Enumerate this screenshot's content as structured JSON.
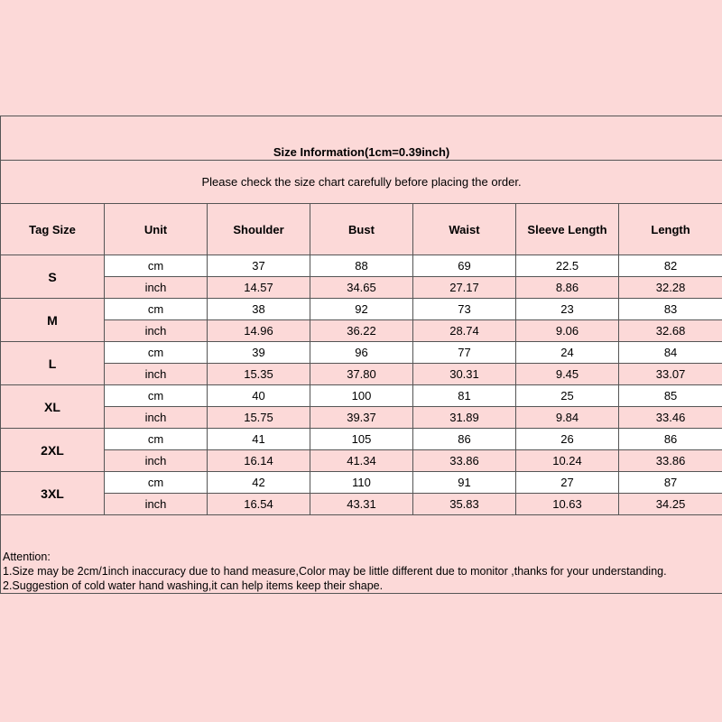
{
  "title": "Size Information(1cm=0.39inch)",
  "subtitle": "Please check the size chart carefully before placing the order.",
  "headers": [
    "Tag Size",
    "Unit",
    "Shoulder",
    "Bust",
    "Waist",
    "Sleeve Length",
    "Length"
  ],
  "sizes": [
    {
      "tag": "S",
      "cm": [
        "cm",
        "37",
        "88",
        "69",
        "22.5",
        "82"
      ],
      "inch": [
        "inch",
        "14.57",
        "34.65",
        "27.17",
        "8.86",
        "32.28"
      ]
    },
    {
      "tag": "M",
      "cm": [
        "cm",
        "38",
        "92",
        "73",
        "23",
        "83"
      ],
      "inch": [
        "inch",
        "14.96",
        "36.22",
        "28.74",
        "9.06",
        "32.68"
      ]
    },
    {
      "tag": "L",
      "cm": [
        "cm",
        "39",
        "96",
        "77",
        "24",
        "84"
      ],
      "inch": [
        "inch",
        "15.35",
        "37.80",
        "30.31",
        "9.45",
        "33.07"
      ]
    },
    {
      "tag": "XL",
      "cm": [
        "cm",
        "40",
        "100",
        "81",
        "25",
        "85"
      ],
      "inch": [
        "inch",
        "15.75",
        "39.37",
        "31.89",
        "9.84",
        "33.46"
      ]
    },
    {
      "tag": "2XL",
      "cm": [
        "cm",
        "41",
        "105",
        "86",
        "26",
        "86"
      ],
      "inch": [
        "inch",
        "16.14",
        "41.34",
        "33.86",
        "10.24",
        "33.86"
      ]
    },
    {
      "tag": "3XL",
      "cm": [
        "cm",
        "42",
        "110",
        "91",
        "27",
        "87"
      ],
      "inch": [
        "inch",
        "16.54",
        "43.31",
        "35.83",
        "10.63",
        "34.25"
      ]
    }
  ],
  "notes": {
    "heading": "Attention:",
    "lines": [
      "1.Size may be 2cm/1inch inaccuracy due to hand measure,Color may be little different due to monitor ,thanks for your understanding.",
      "2.Suggestion of cold water hand washing,it can help items keep their shape."
    ]
  }
}
